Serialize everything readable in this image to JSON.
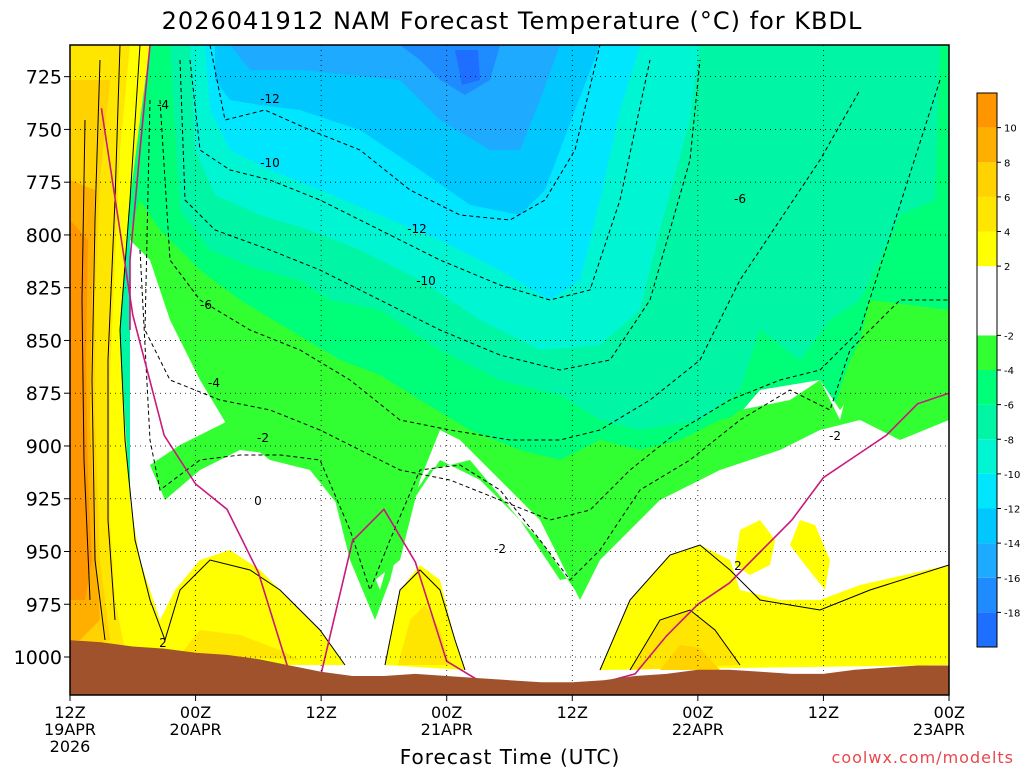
{
  "chart_data": {
    "type": "heatmap",
    "title": "2026041912 NAM Forecast Temperature (°C) for KBDL",
    "xlabel": "Forecast Time (UTC)",
    "ylabel": "",
    "credit": "coolwx.com/modelts",
    "y_pressure_ticks": [
      "725",
      "750",
      "775",
      "800",
      "825",
      "850",
      "875",
      "900",
      "925",
      "950",
      "975",
      "1000"
    ],
    "ylim": [
      710,
      1018
    ],
    "x_hours_range": [
      0,
      84
    ],
    "x_ticks": [
      {
        "hour": 0,
        "lines": [
          "12Z",
          "19APR",
          "2026"
        ]
      },
      {
        "hour": 12,
        "lines": [
          "00Z",
          "20APR"
        ]
      },
      {
        "hour": 24,
        "lines": [
          "12Z"
        ]
      },
      {
        "hour": 36,
        "lines": [
          "00Z",
          "21APR"
        ]
      },
      {
        "hour": 48,
        "lines": [
          "12Z"
        ]
      },
      {
        "hour": 60,
        "lines": [
          "00Z",
          "22APR"
        ]
      },
      {
        "hour": 72,
        "lines": [
          "12Z"
        ]
      },
      {
        "hour": 84,
        "lines": [
          "00Z",
          "23APR"
        ]
      }
    ],
    "colorbar": {
      "levels": [
        -20,
        -18,
        -16,
        -14,
        -12,
        -10,
        -8,
        -6,
        -4,
        -2,
        2,
        4,
        6,
        8,
        10,
        12
      ],
      "tick_labels": [
        "-18",
        "-16",
        "-14",
        "-12",
        "-10",
        "-8",
        "-6",
        "-4",
        "-2",
        "2",
        "4",
        "6",
        "8",
        "10"
      ],
      "colors": [
        "#1e6eff",
        "#1e8cff",
        "#1eaaff",
        "#00c8ff",
        "#00e6ff",
        "#00f5d2",
        "#00f5a5",
        "#00ff78",
        "#32ff32",
        "#ffffff",
        "#ffff00",
        "#ffe600",
        "#ffd200",
        "#ffaf00",
        "#ff9600"
      ]
    },
    "contour_labels": [
      "-12",
      "-10",
      "-12",
      "-10",
      "-6",
      "-4",
      "-2",
      "0",
      "-2",
      "-6",
      "-2",
      "2",
      "2",
      "-4"
    ],
    "ground_color": "#a0522d",
    "zero_line_color": "#c8197d",
    "contours_dashed_below_zero": true,
    "grid": "dotted",
    "time_series": {
      "hours": [
        0,
        3,
        6,
        9,
        12,
        15,
        18,
        21,
        24,
        27,
        30,
        33,
        36,
        39,
        42,
        45,
        48,
        51,
        54,
        57,
        60,
        63,
        66,
        69,
        72,
        75,
        78,
        81,
        84
      ],
      "surface_pressure_hpa": [
        992,
        993,
        995,
        996,
        998,
        999,
        1001,
        1004,
        1007,
        1009,
        1009,
        1008,
        1009,
        1010,
        1011,
        1012,
        1012,
        1011,
        1009,
        1008,
        1006,
        1006,
        1007,
        1008,
        1008,
        1006,
        1005,
        1004,
        1004
      ],
      "zero_c_pressure_hpa": [
        0,
        740,
        838,
        895,
        918,
        930,
        960,
        1008,
        1008,
        945,
        930,
        955,
        1002,
        1011,
        1013,
        1013,
        1013,
        1012,
        1008,
        990,
        975,
        965,
        950,
        935,
        915,
        905,
        895,
        880,
        875
      ],
      "minus2c_pressure_hpa": [
        0,
        720,
        830,
        880,
        897,
        915,
        905,
        975,
        980,
        900,
        895,
        920,
        940,
        945,
        950,
        955,
        968,
        960,
        925,
        900,
        890,
        880,
        855,
        862,
        885,
        870,
        860,
        850,
        835
      ],
      "warm_layer_top_hpa": [
        0,
        0,
        988,
        955,
        945,
        955,
        975,
        1004,
        1007,
        968,
        955,
        980,
        1002,
        1010,
        1012,
        1012,
        1012,
        1011,
        985,
        975,
        948,
        940,
        945,
        950,
        955,
        962,
        965,
        960,
        950
      ]
    }
  }
}
